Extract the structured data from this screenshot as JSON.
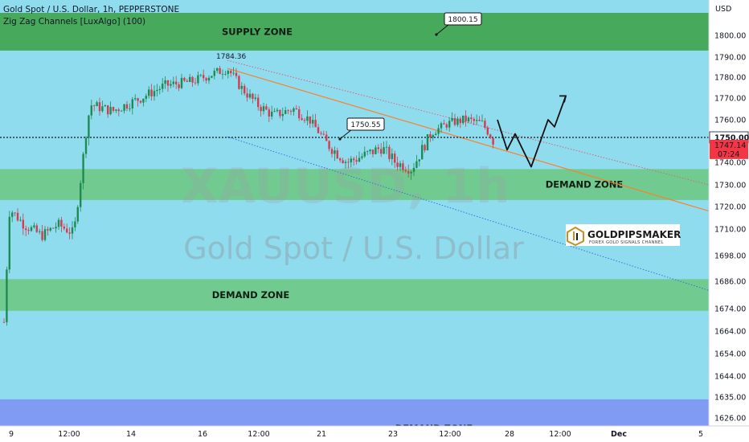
{
  "header": {
    "line1": "Gold Spot / U.S. Dollar, 1h, PEPPERSTONE",
    "line2": "Zig Zag Channels [LuxAlgo] (100)"
  },
  "watermark": {
    "symbol": "XAUUSD, 1h",
    "name": "Gold Spot / U.S. Dollar"
  },
  "currency": "USD",
  "zones": [
    {
      "label": "SUPPLY ZONE",
      "kind": "supply",
      "from": 1793,
      "to": 1808
    },
    {
      "label": "DEMAND ZONE",
      "kind": "demand",
      "from": 1723,
      "to": 1737
    },
    {
      "label": "DEMAND ZONE",
      "kind": "demand",
      "from": 1673,
      "to": 1687
    },
    {
      "label": "DEMAND ZONE",
      "kind": "demand-blue",
      "from": 1619,
      "to": 1634
    }
  ],
  "callouts": [
    {
      "label": "1800.15"
    },
    {
      "label": "1750.55"
    }
  ],
  "peak_label": "1784.36",
  "price_marker": {
    "level": "1750.00",
    "price": "1747.14",
    "countdown": "07:24"
  },
  "logo": {
    "name": "GOLDPIPSMAKER",
    "tagline": "FOREX GOLD SIGNALS CHANNEL"
  },
  "colors": {
    "background": "#8fdcef",
    "supply": "#46a95c",
    "demand": "#70c889",
    "demand_blue": "#7f97f3",
    "candle_up": "#1f8a52",
    "candle_down": "#d83a4f",
    "channel_mid": "#ff7f2a",
    "channel_upper": "#e0607a",
    "channel_lower": "#3c72e0",
    "price_tag": "#f23645"
  },
  "chart_data": {
    "type": "candlestick",
    "symbol": "XAUUSD",
    "timeframe": "1h",
    "ylim": [
      1619,
      1812
    ],
    "y_ticks": [
      1800,
      1790,
      1780,
      1770,
      1760,
      1750,
      1740,
      1730,
      1720,
      1710,
      1698,
      1686,
      1674,
      1664,
      1654,
      1644,
      1635,
      1626
    ],
    "x_ticks": [
      "9",
      "12:00",
      "14",
      "16",
      "12:00",
      "21",
      "23",
      "12:00",
      "28",
      "12:00",
      "Dec",
      "5"
    ],
    "series": [
      {
        "points": [
          [
            "9",
            1668
          ],
          [
            "10",
            1719
          ],
          [
            "10 12:00",
            1712
          ],
          [
            "11",
            1707
          ],
          [
            "11 12:00",
            1712
          ],
          [
            "12:00",
            1708
          ],
          [
            "14",
            1767
          ],
          [
            "14 12:00",
            1764
          ],
          [
            "15",
            1770
          ],
          [
            "15 12:00",
            1776
          ],
          [
            "16",
            1778
          ],
          [
            "16 06:00",
            1784.36
          ],
          [
            "16 12:00",
            1775
          ],
          [
            "17",
            1767
          ],
          [
            "17 12:00",
            1762
          ],
          [
            "18",
            1765
          ],
          [
            "18 12:00",
            1760
          ],
          [
            "21",
            1748
          ],
          [
            "21 12:00",
            1740
          ],
          [
            "22",
            1743
          ],
          [
            "22 12:00",
            1746
          ],
          [
            "23",
            1740
          ],
          [
            "23 12:00",
            1737
          ],
          [
            "24",
            1753
          ],
          [
            "24 12:00",
            1758
          ],
          [
            "25",
            1760
          ],
          [
            "25 12:00",
            1758
          ],
          [
            "28",
            1747.14
          ]
        ]
      }
    ],
    "channel": {
      "start": {
        "x": "16 06:00",
        "y": 1784.36
      },
      "middle_end": 1718,
      "upper_end": 1730,
      "lower_end": 1682
    },
    "projection": [
      1760,
      1745,
      1752,
      1738,
      1760,
      1756,
      1771
    ]
  }
}
